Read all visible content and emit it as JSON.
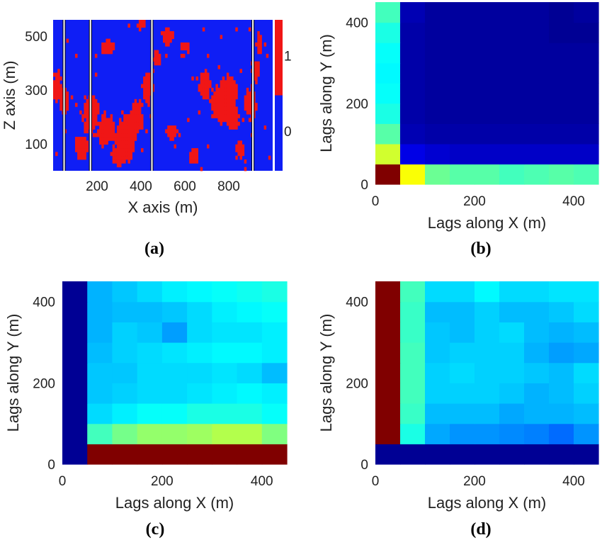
{
  "chart_data": [
    {
      "id": "a",
      "type": "heatmap",
      "panel_label": "(a)",
      "xlabel": "X axis (m)",
      "ylabel": "Z axis (m)",
      "xlim": [
        0,
        1000
      ],
      "ylim": [
        0,
        560
      ],
      "xticks": [
        "200",
        "400",
        "600",
        "800"
      ],
      "yticks": [
        "100",
        "300",
        "500"
      ],
      "colorbar": {
        "ticks": [
          "0",
          "1"
        ],
        "colors": [
          "#0f1ef5",
          "#f01616"
        ]
      },
      "background_color": "#0f1ef5",
      "facies_color": "#f01616",
      "well_x": [
        50,
        170,
        450,
        910
      ],
      "facies_cells_note": ""
    },
    {
      "id": "b",
      "type": "heatmap",
      "panel_label": "(b)",
      "xlabel": "Lags along X (m)",
      "ylabel": "Lags along Y (m)",
      "xlim": [
        0,
        450
      ],
      "ylim": [
        0,
        450
      ],
      "xticks": [
        "0",
        "200",
        "400"
      ],
      "yticks": [
        "0",
        "200",
        "400"
      ],
      "lag_edges": [
        0,
        50,
        100,
        150,
        200,
        250,
        300,
        350,
        400,
        450
      ],
      "values": [
        [
          1.0,
          0.62,
          0.48,
          0.46,
          0.46,
          0.44,
          0.45,
          0.46,
          0.45
        ],
        [
          0.58,
          0.1,
          0.08,
          0.07,
          0.07,
          0.07,
          0.07,
          0.07,
          0.07
        ],
        [
          0.46,
          0.05,
          0.04,
          0.04,
          0.04,
          0.04,
          0.04,
          0.04,
          0.04
        ],
        [
          0.4,
          0.04,
          0.03,
          0.03,
          0.03,
          0.03,
          0.03,
          0.03,
          0.03
        ],
        [
          0.38,
          0.04,
          0.03,
          0.03,
          0.03,
          0.03,
          0.03,
          0.03,
          0.03
        ],
        [
          0.37,
          0.04,
          0.03,
          0.03,
          0.03,
          0.03,
          0.03,
          0.03,
          0.03
        ],
        [
          0.38,
          0.04,
          0.03,
          0.03,
          0.03,
          0.03,
          0.03,
          0.03,
          0.03
        ],
        [
          0.4,
          0.04,
          0.03,
          0.03,
          0.03,
          0.03,
          0.03,
          0.02,
          0.02
        ],
        [
          0.44,
          0.05,
          0.03,
          0.03,
          0.03,
          0.03,
          0.03,
          0.02,
          0.03
        ]
      ]
    },
    {
      "id": "c",
      "type": "heatmap",
      "panel_label": "(c)",
      "xlabel": "Lags along X (m)",
      "ylabel": "Lags along Y (m)",
      "xlim": [
        0,
        450
      ],
      "ylim": [
        0,
        450
      ],
      "xticks": [
        "0",
        "200",
        "400"
      ],
      "yticks": [
        "0",
        "200",
        "400"
      ],
      "lag_edges": [
        0,
        50,
        100,
        150,
        200,
        250,
        300,
        350,
        400,
        450
      ],
      "values": [
        [
          0.02,
          1.0,
          1.0,
          1.0,
          1.0,
          1.0,
          1.0,
          1.0,
          1.0
        ],
        [
          0.02,
          0.44,
          0.49,
          0.52,
          0.52,
          0.53,
          0.55,
          0.55,
          0.5
        ],
        [
          0.02,
          0.34,
          0.36,
          0.38,
          0.38,
          0.4,
          0.4,
          0.4,
          0.38
        ],
        [
          0.02,
          0.32,
          0.33,
          0.34,
          0.34,
          0.35,
          0.36,
          0.37,
          0.36
        ],
        [
          0.02,
          0.32,
          0.32,
          0.34,
          0.34,
          0.34,
          0.35,
          0.34,
          0.31
        ],
        [
          0.02,
          0.31,
          0.33,
          0.34,
          0.35,
          0.36,
          0.37,
          0.37,
          0.36
        ],
        [
          0.02,
          0.3,
          0.33,
          0.32,
          0.28,
          0.34,
          0.35,
          0.35,
          0.36
        ],
        [
          0.02,
          0.3,
          0.31,
          0.31,
          0.32,
          0.34,
          0.36,
          0.37,
          0.38
        ],
        [
          0.02,
          0.3,
          0.32,
          0.34,
          0.36,
          0.37,
          0.38,
          0.39,
          0.4
        ]
      ]
    },
    {
      "id": "d",
      "type": "heatmap",
      "panel_label": "(d)",
      "xlabel": "Lags along X (m)",
      "ylabel": "Lags along Y (m)",
      "xlim": [
        0,
        450
      ],
      "ylim": [
        0,
        450
      ],
      "xticks": [
        "0",
        "200",
        "400"
      ],
      "yticks": [
        "0",
        "200",
        "400"
      ],
      "lag_edges": [
        0,
        50,
        100,
        150,
        200,
        250,
        300,
        350,
        400,
        450
      ],
      "values": [
        [
          0.02,
          0.02,
          0.02,
          0.02,
          0.02,
          0.02,
          0.02,
          0.02,
          0.02
        ],
        [
          1.0,
          0.4,
          0.29,
          0.27,
          0.27,
          0.26,
          0.25,
          0.23,
          0.27
        ],
        [
          1.0,
          0.43,
          0.31,
          0.31,
          0.31,
          0.29,
          0.3,
          0.3,
          0.31
        ],
        [
          1.0,
          0.44,
          0.33,
          0.33,
          0.33,
          0.32,
          0.3,
          0.31,
          0.33
        ],
        [
          1.0,
          0.44,
          0.33,
          0.34,
          0.33,
          0.33,
          0.32,
          0.31,
          0.34
        ],
        [
          1.0,
          0.44,
          0.32,
          0.33,
          0.33,
          0.33,
          0.3,
          0.28,
          0.29
        ],
        [
          1.0,
          0.43,
          0.32,
          0.31,
          0.33,
          0.34,
          0.31,
          0.3,
          0.31
        ],
        [
          1.0,
          0.43,
          0.31,
          0.31,
          0.33,
          0.31,
          0.31,
          0.32,
          0.34
        ],
        [
          1.0,
          0.44,
          0.34,
          0.34,
          0.37,
          0.34,
          0.34,
          0.35,
          0.35
        ]
      ]
    }
  ]
}
